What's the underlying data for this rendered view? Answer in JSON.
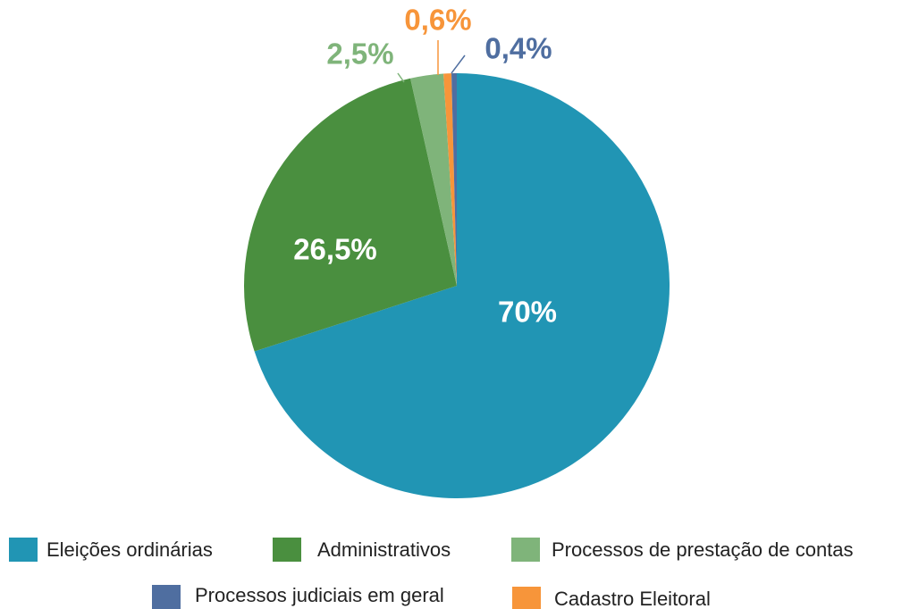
{
  "chart_data": {
    "type": "pie",
    "categories": [
      "Eleições ordinárias",
      "Administrativos",
      "Processos de prestação de contas",
      "Cadastro Eleitoral",
      "Processos judiciais em geral"
    ],
    "values": [
      70,
      26.5,
      2.5,
      0.6,
      0.4
    ],
    "value_labels": [
      "70%",
      "26,5%",
      "2,5%",
      "0,6%",
      "0,4%"
    ],
    "colors": [
      "#2195b4",
      "#4a8f3f",
      "#7fb47a",
      "#f7953a",
      "#4f6ea0"
    ]
  }
}
